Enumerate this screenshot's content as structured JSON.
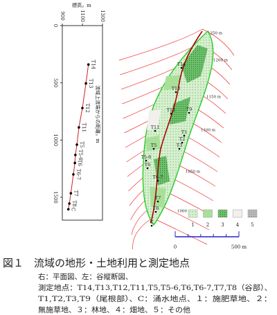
{
  "chart_data": {
    "type": "line",
    "x_label": "標高，m",
    "y_label": "流域上流端からの距離，m",
    "categories": [
      "T14",
      "T13",
      "T12",
      "T11",
      "T5",
      "T5-6",
      "T6",
      "T6-7",
      "T7",
      "T8",
      "C"
    ],
    "x": [
      1160,
      1135,
      1100,
      1065,
      1045,
      1030,
      1025,
      1010,
      985,
      970,
      960
    ],
    "y": [
      340,
      505,
      720,
      890,
      1040,
      1130,
      1200,
      1300,
      1465,
      1555,
      1605
    ],
    "color": "#d02020",
    "xlim": [
      900,
      1300
    ],
    "xticks": [
      900,
      1100,
      1300
    ],
    "ylim": [
      0,
      1700
    ],
    "yticks": [
      0,
      500,
      1000,
      1500
    ]
  },
  "map": {
    "contours": [
      "1250 m",
      "1200 m",
      "1150 m",
      "1100 m",
      "1050 m",
      "1000 m"
    ],
    "stations": [
      "T14",
      "T13",
      "T12",
      "T9",
      "T11",
      "T1",
      "T2",
      "T3",
      "T5",
      "T5-6",
      "T6",
      "T6-7",
      "T7",
      "T8",
      "C"
    ],
    "legend": [
      "1",
      "2",
      "3",
      "4",
      "5"
    ],
    "scale": [
      "0",
      "500 m"
    ]
  },
  "caption": {
    "title": "図１　流域の地形・土地利用と測定地点",
    "lines": [
      "右：平面図、左：谷縦断図、",
      "測定地点：T14,T13,T12,T11,T5,T5-6,T6,T6-7,T7,T8（谷部）、",
      "T1,T2,T3,T9（尾根部）、C：涌水地点、１：施肥草地、２：",
      "無施草地、３：林地、４：畑地、５：その他"
    ]
  }
}
